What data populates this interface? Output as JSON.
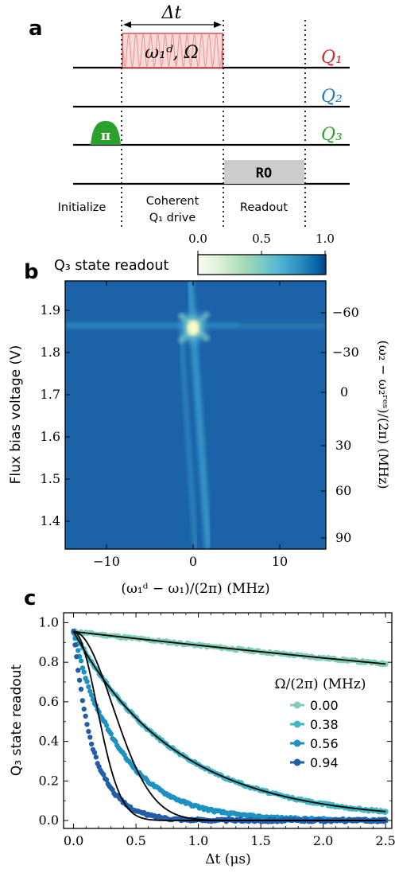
{
  "panel_a": {
    "label": "a",
    "delta_t": "Δt",
    "drive_label": "ω₁ᵈ, Ω",
    "qubits": [
      "Q₁",
      "Q₂",
      "Q₃"
    ],
    "pi_label": "π",
    "ro_label": "RO",
    "phases": [
      "Initialize",
      "Coherent",
      "Q₁ drive",
      "Readout"
    ],
    "colors": {
      "q1": "#d62728",
      "q2": "#1f77b4",
      "q3": "#2ca02c",
      "drive_fill": "#f7d0d0",
      "ro_fill": "#cccccc"
    }
  },
  "panel_b": {
    "label": "b",
    "colorbar_label": "Q₃ state readout",
    "colorbar_ticks": [
      "0.0",
      "0.5",
      "1.0"
    ],
    "ylabel_left": "Flux bias voltage (V)",
    "ylabel_right": "(ω₂ − ω₂ʳᵉˢ)/(2π) (MHz)",
    "xlabel": "(ω₁ᵈ − ω₁)/(2π) (MHz)",
    "x_ticks": [
      "−10",
      "0",
      "10"
    ],
    "y_ticks_left": [
      "1.9",
      "1.8",
      "1.7",
      "1.6",
      "1.5",
      "1.4"
    ],
    "y_ticks_right": [
      "−60",
      "−30",
      "0",
      "30",
      "60",
      "90"
    ]
  },
  "panel_c": {
    "label": "c",
    "legend_title": "Ω/(2π) (MHz)"
  },
  "chart_data": {
    "type": "scatter",
    "title": "",
    "xlabel": "Δt (μs)",
    "ylabel": "Q₃ state readout",
    "xlim": [
      -0.08,
      2.55
    ],
    "ylim": [
      -0.04,
      1.05
    ],
    "x_ticks": [
      "0.0",
      "0.5",
      "1.0",
      "1.5",
      "2.0",
      "2.5"
    ],
    "y_ticks": [
      "0.0",
      "0.2",
      "0.4",
      "0.6",
      "0.8",
      "1.0"
    ],
    "legend": "center-right",
    "series": [
      {
        "name": "0.00",
        "color": "#7fcdbb",
        "y0": 0.955,
        "tau": 13.3,
        "x_end": 2.5
      },
      {
        "name": "0.38",
        "color": "#41b6c4",
        "y0": 0.955,
        "tau": 0.82,
        "x_end": 2.5
      },
      {
        "name": "0.56",
        "color": "#1d91c0",
        "y0": 0.955,
        "tau": 0.38,
        "x_end": 2.5
      },
      {
        "name": "0.94",
        "color": "#225ea8",
        "y0": 0.955,
        "tau": 0.17,
        "x_end": 2.5
      }
    ]
  }
}
